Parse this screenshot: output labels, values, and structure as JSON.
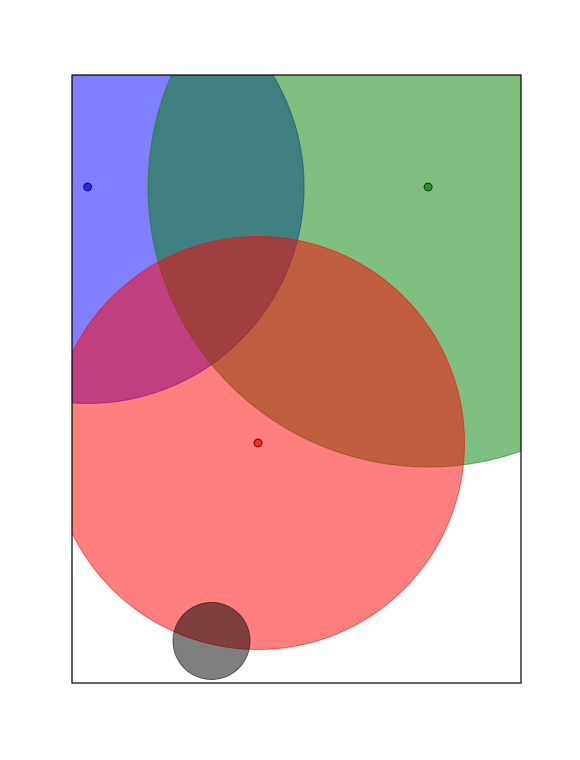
{
  "chart_data": {
    "type": "scatter",
    "title": "",
    "xlabel": "",
    "ylabel": "",
    "xlim": [
      0,
      449
    ],
    "ylim": [
      0,
      608
    ],
    "grid": false,
    "axis_ticks": false,
    "circles": [
      {
        "name": "",
        "x": 15.6,
        "y": 496.0,
        "r": 216.5,
        "color": "#0000ff",
        "alpha": 0.5,
        "center_dot": true
      },
      {
        "name": "",
        "x": 356.1,
        "y": 496.0,
        "r": 280.0,
        "color": "#008000",
        "alpha": 0.5,
        "center_dot": true
      },
      {
        "name": "",
        "x": 186.0,
        "y": 240.0,
        "r": 206.5,
        "color": "#ff0000",
        "alpha": 0.5,
        "center_dot": true
      },
      {
        "name": "",
        "x": 139.5,
        "y": 42.0,
        "r": 38.5,
        "color": "#000000",
        "alpha": 0.5,
        "center_dot": false
      }
    ]
  }
}
